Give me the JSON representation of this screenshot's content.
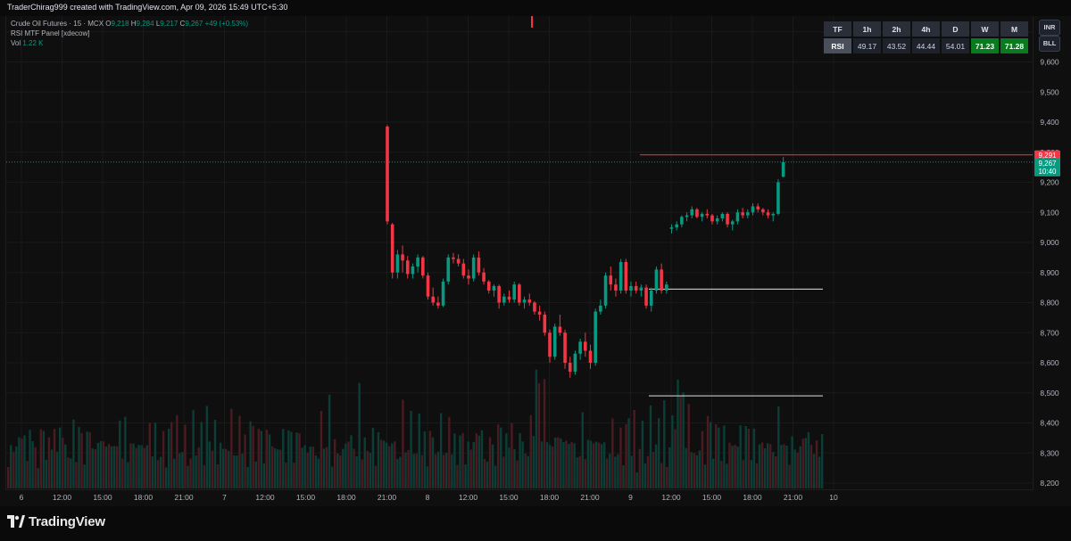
{
  "header": {
    "title": "TraderChirag999 created with TradingView.com, Apr 09, 2026 15:49 UTC+5:30"
  },
  "legend": {
    "symbol": "Crude Oil Futures · 15 · MCX",
    "o_label": "O",
    "o": "9,218",
    "h_label": "H",
    "h": "9,284",
    "l_label": "L",
    "l": "9,217",
    "c_label": "C",
    "c": "9,267",
    "change": "+49 (+0.53%)",
    "indicator": "RSI MTF Panel [xdecow]",
    "vol_label": "Vol",
    "vol": "1.22 K"
  },
  "rsi_panel": {
    "tf_label": "TF",
    "rsi_label": "RSI",
    "timeframes": [
      "1h",
      "2h",
      "4h",
      "D",
      "W",
      "M"
    ],
    "values": [
      "49.17",
      "43.52",
      "44.44",
      "54.01",
      "71.23",
      "71.28"
    ],
    "highlighted": [
      false,
      false,
      false,
      false,
      true,
      true
    ]
  },
  "side_buttons": [
    "INR",
    "BLL"
  ],
  "colors": {
    "up": "#089981",
    "down": "#f23645",
    "line_red": "#f23645",
    "line_white": "#e0e0e0",
    "highlight_green": "#0a7a1e"
  },
  "chart_data": {
    "type": "candlestick",
    "symbol": "Crude Oil Futures",
    "timeframe": "15",
    "ylim": [
      8200,
      9800
    ],
    "y_ticks": [
      "9,700",
      "9,600",
      "9,500",
      "9,400",
      "9,300",
      "9,200",
      "9,100",
      "9,000",
      "8,900",
      "8,800",
      "8,700",
      "8,600",
      "8,500",
      "8,400",
      "8,300",
      "8,200"
    ],
    "x_tick_labels": [
      "6",
      "12:00",
      "15:00",
      "18:00",
      "21:00",
      "7",
      "12:00",
      "15:00",
      "18:00",
      "21:00",
      "8",
      "12:00",
      "15:00",
      "18:00",
      "21:00",
      "9",
      "12:00",
      "15:00",
      "18:00",
      "21:00",
      "10"
    ],
    "price_labels": {
      "resistance": "9,291",
      "last_price": "9,267",
      "countdown": "10:40"
    },
    "horizontal_levels": [
      {
        "price": 9291,
        "color": "red",
        "from": "Apr 08 15:45",
        "to": "end"
      },
      {
        "price": 8845,
        "color": "white",
        "from": "Apr 08 16:00",
        "to": "Apr 09 12:00"
      },
      {
        "price": 8490,
        "color": "white",
        "from": "Apr 08 16:00",
        "to": "Apr 09 12:00"
      }
    ],
    "candles": [
      [
        9.0,
        9385,
        9390,
        9060,
        9070
      ],
      [
        9.125,
        9060,
        9065,
        8880,
        8900
      ],
      [
        9.25,
        8900,
        8975,
        8880,
        8960
      ],
      [
        9.375,
        8960,
        8990,
        8900,
        8940
      ],
      [
        9.5,
        8940,
        8955,
        8880,
        8895
      ],
      [
        9.625,
        8895,
        8930,
        8880,
        8920
      ],
      [
        9.75,
        8920,
        8960,
        8900,
        8950
      ],
      [
        9.875,
        8950,
        8955,
        8880,
        8890
      ],
      [
        10.0,
        8890,
        8900,
        8810,
        8820
      ],
      [
        10.125,
        8820,
        8850,
        8790,
        8800
      ],
      [
        10.25,
        8800,
        8820,
        8780,
        8790
      ],
      [
        10.375,
        8790,
        8880,
        8785,
        8870
      ],
      [
        10.5,
        8870,
        8960,
        8860,
        8950
      ],
      [
        10.625,
        8950,
        8965,
        8930,
        8945
      ],
      [
        10.75,
        8945,
        8960,
        8920,
        8930
      ],
      [
        10.875,
        8930,
        8945,
        8880,
        8890
      ],
      [
        11.0,
        8890,
        8910,
        8860,
        8880
      ],
      [
        11.125,
        8880,
        8960,
        8870,
        8950
      ],
      [
        11.25,
        8950,
        8970,
        8890,
        8900
      ],
      [
        11.375,
        8900,
        8915,
        8860,
        8870
      ],
      [
        11.5,
        8870,
        8875,
        8830,
        8840
      ],
      [
        11.625,
        8840,
        8860,
        8820,
        8855
      ],
      [
        11.75,
        8855,
        8860,
        8780,
        8800
      ],
      [
        11.875,
        8800,
        8830,
        8790,
        8820
      ],
      [
        12.0,
        8820,
        8840,
        8800,
        8810
      ],
      [
        12.125,
        8810,
        8870,
        8800,
        8860
      ],
      [
        12.25,
        8860,
        8865,
        8790,
        8800
      ],
      [
        12.375,
        8800,
        8820,
        8780,
        8810
      ],
      [
        12.5,
        8810,
        8830,
        8790,
        8800
      ],
      [
        12.625,
        8800,
        8805,
        8760,
        8770
      ],
      [
        12.75,
        8770,
        8790,
        8740,
        8760
      ],
      [
        12.875,
        8760,
        8770,
        8690,
        8700
      ],
      [
        13.0,
        8700,
        8710,
        8600,
        8620
      ],
      [
        13.125,
        8620,
        8730,
        8610,
        8720
      ],
      [
        13.25,
        8720,
        8760,
        8690,
        8700
      ],
      [
        13.375,
        8700,
        8710,
        8580,
        8600
      ],
      [
        13.5,
        8600,
        8620,
        8550,
        8570
      ],
      [
        13.625,
        8570,
        8640,
        8560,
        8630
      ],
      [
        13.75,
        8630,
        8680,
        8610,
        8670
      ],
      [
        13.875,
        8670,
        8700,
        8620,
        8640
      ],
      [
        14.0,
        8640,
        8660,
        8580,
        8600
      ],
      [
        14.125,
        8600,
        8780,
        8590,
        8770
      ],
      [
        14.25,
        8770,
        8810,
        8760,
        8790
      ],
      [
        14.375,
        8790,
        8900,
        8780,
        8890
      ],
      [
        14.5,
        8890,
        8920,
        8840,
        8860
      ],
      [
        14.625,
        8860,
        8880,
        8820,
        8840
      ],
      [
        14.75,
        8840,
        8945,
        8830,
        8935
      ],
      [
        14.875,
        8935,
        8945,
        8830,
        8840
      ],
      [
        15.0,
        8840,
        8870,
        8820,
        8855
      ],
      [
        15.125,
        8855,
        8870,
        8830,
        8840
      ],
      [
        15.25,
        8840,
        8860,
        8820,
        8850
      ],
      [
        15.375,
        8850,
        8860,
        8780,
        8790
      ],
      [
        15.5,
        8790,
        8850,
        8770,
        8840
      ],
      [
        15.625,
        8840,
        8920,
        8830,
        8910
      ],
      [
        15.75,
        8910,
        8930,
        8830,
        8840
      ],
      [
        15.875,
        8840,
        8870,
        8830,
        8860
      ],
      [
        16.0,
        9045,
        9060,
        9030,
        9050
      ],
      [
        16.125,
        9050,
        9070,
        9040,
        9060
      ],
      [
        16.25,
        9060,
        9090,
        9050,
        9085
      ],
      [
        16.375,
        9085,
        9100,
        9070,
        9090
      ],
      [
        16.5,
        9090,
        9120,
        9080,
        9110
      ],
      [
        16.625,
        9110,
        9115,
        9080,
        9085
      ],
      [
        16.75,
        9085,
        9100,
        9070,
        9095
      ],
      [
        16.875,
        9095,
        9110,
        9080,
        9090
      ],
      [
        17.0,
        9090,
        9095,
        9060,
        9070
      ],
      [
        17.125,
        9070,
        9090,
        9060,
        9080
      ],
      [
        17.25,
        9080,
        9100,
        9070,
        9095
      ],
      [
        17.375,
        9095,
        9100,
        9050,
        9060
      ],
      [
        17.5,
        9060,
        9075,
        9040,
        9070
      ],
      [
        17.625,
        9070,
        9110,
        9060,
        9100
      ],
      [
        17.75,
        9100,
        9115,
        9080,
        9090
      ],
      [
        17.875,
        9090,
        9110,
        9080,
        9100
      ],
      [
        18.0,
        9100,
        9130,
        9090,
        9120
      ],
      [
        18.125,
        9120,
        9130,
        9100,
        9110
      ],
      [
        18.25,
        9110,
        9115,
        9090,
        9100
      ],
      [
        18.375,
        9100,
        9110,
        9080,
        9090
      ],
      [
        18.5,
        9090,
        9100,
        9070,
        9095
      ],
      [
        18.625,
        9095,
        9210,
        9090,
        9200
      ],
      [
        18.75,
        9218,
        9284,
        9217,
        9267
      ]
    ],
    "candle_format": "[x_position_in_x_tick_index_units, open, high, low, close]",
    "volume_format": "same x positions as candles"
  }
}
